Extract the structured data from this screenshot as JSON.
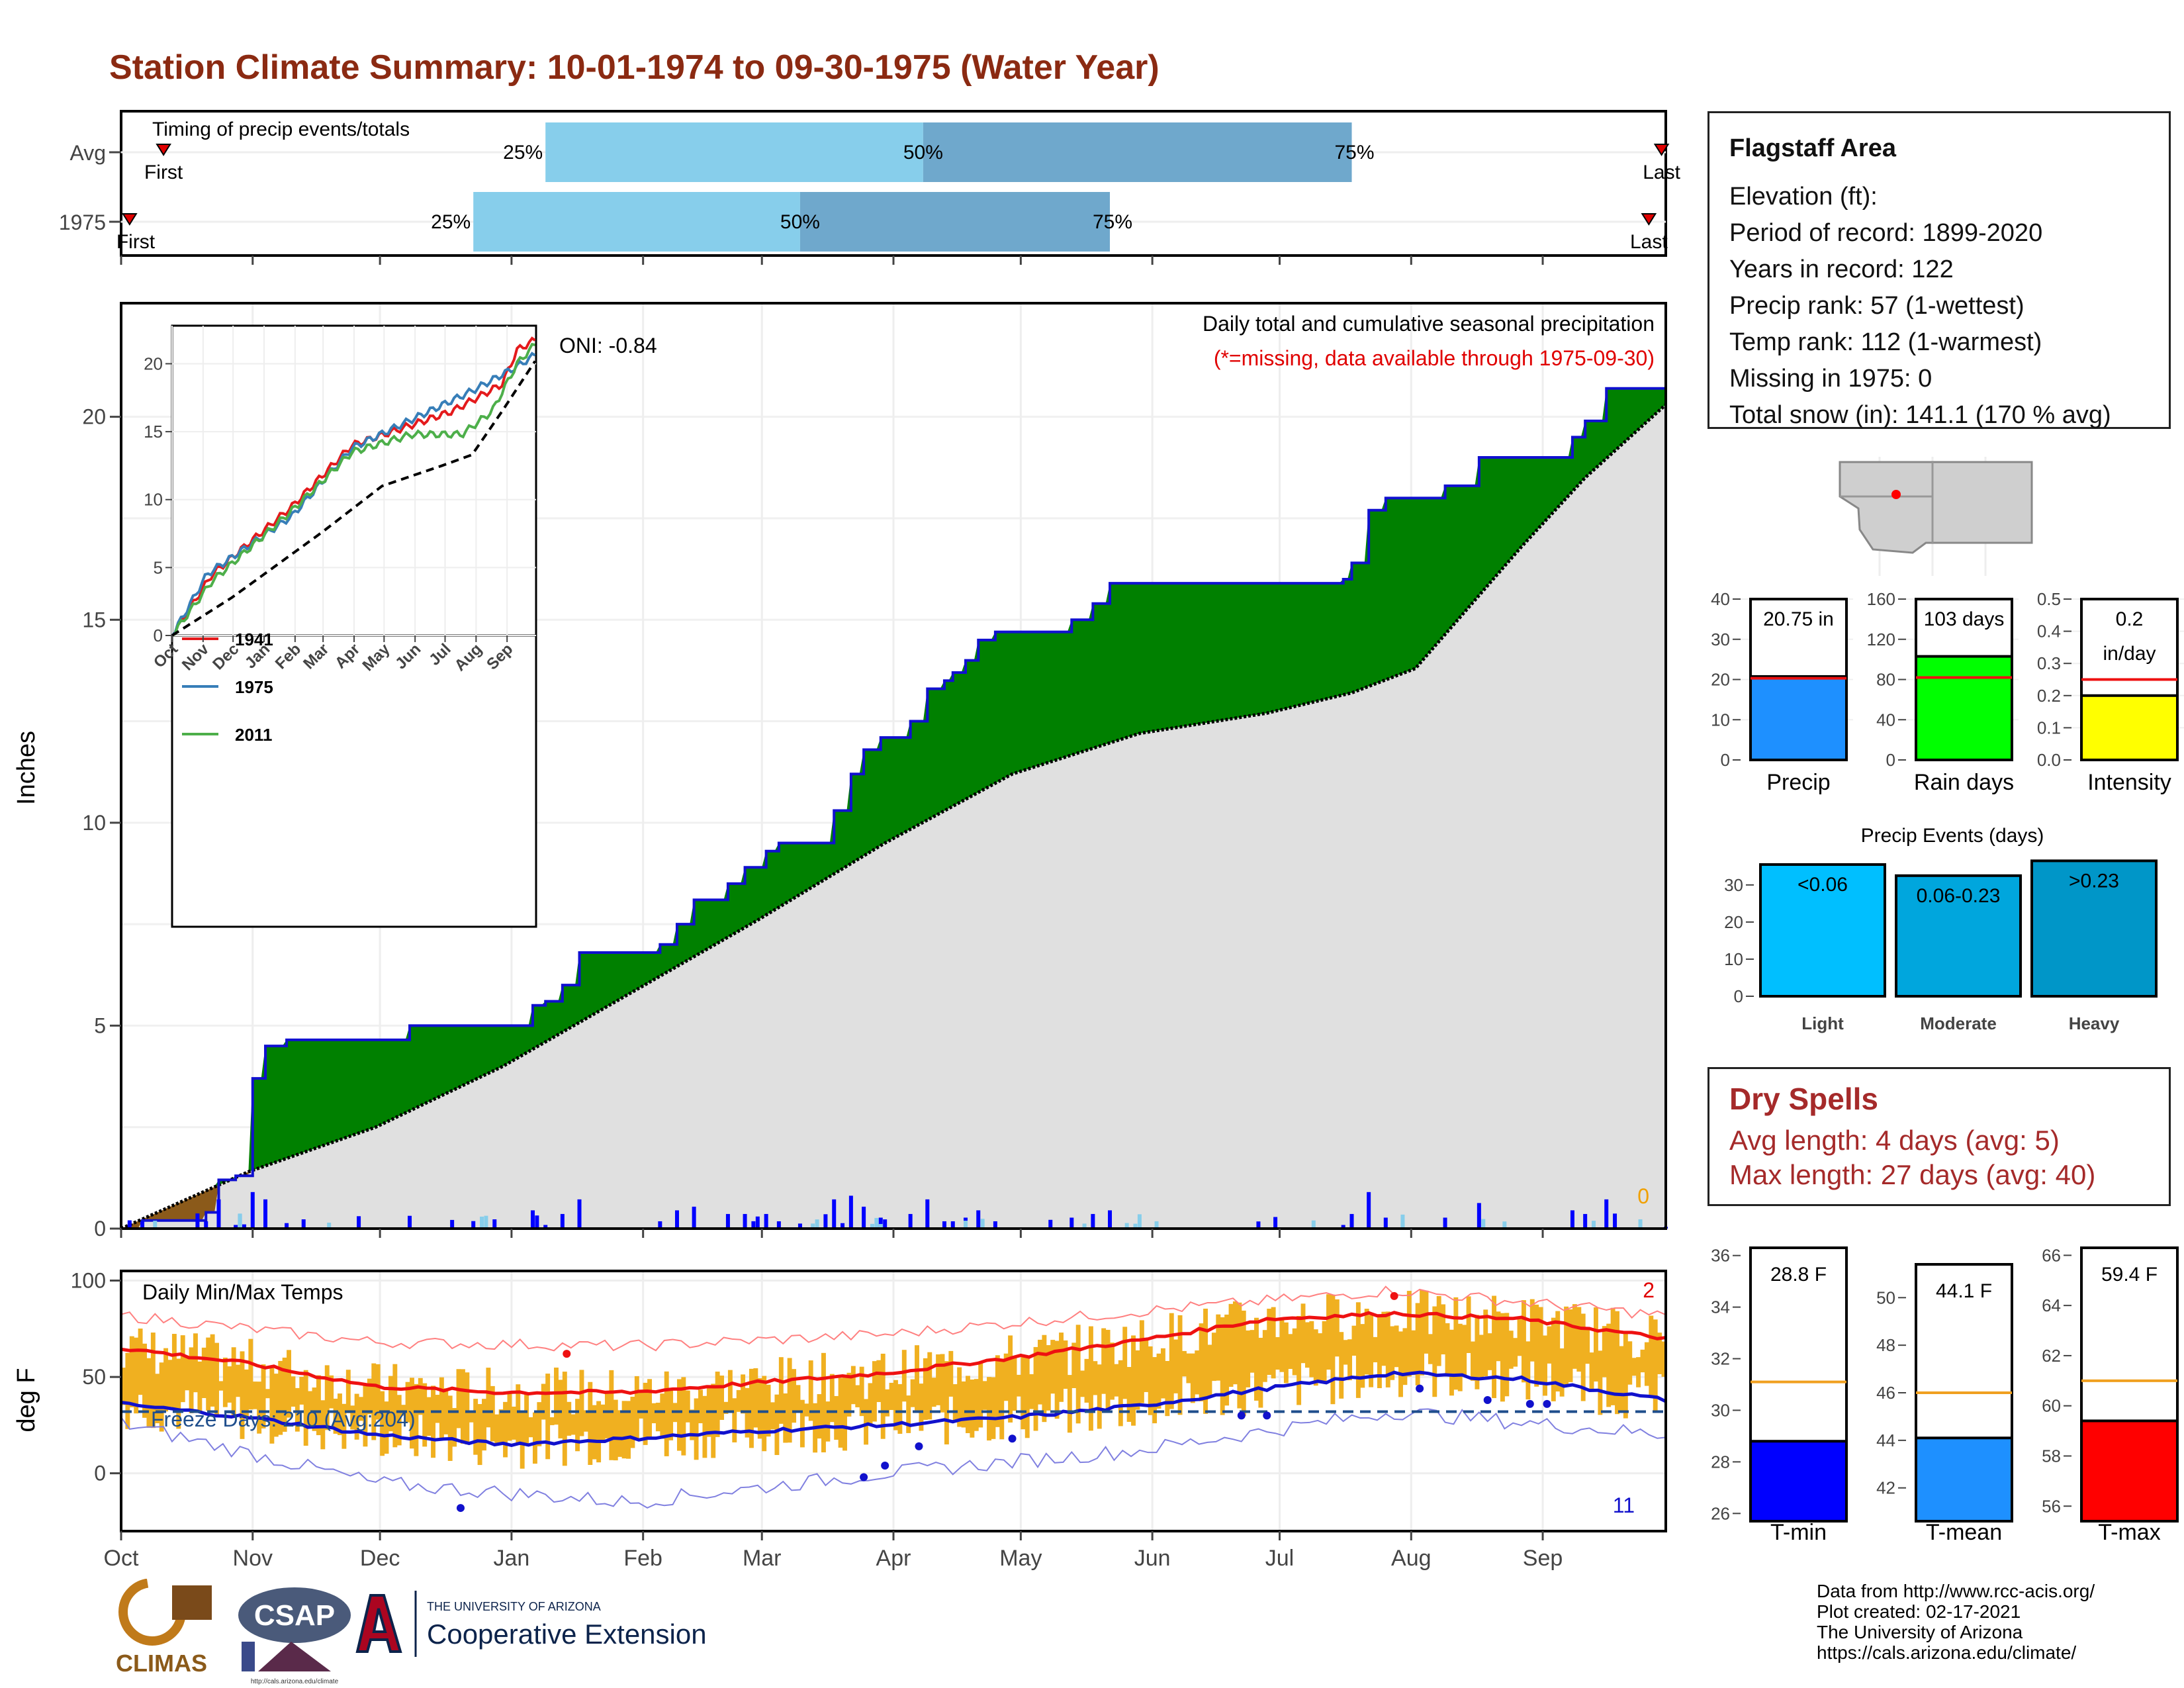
{
  "title": "Station Climate Summary: 10-01-1974 to 09-30-1975 (Water Year)",
  "timing_panel": {
    "title": "Timing of precip events/totals",
    "rows": [
      {
        "label": "Avg",
        "first_label": "First",
        "last_label": "Last",
        "first_day": 10,
        "last_day": 363,
        "p25_day": 100,
        "p50_day": 189,
        "p75_day": 290
      },
      {
        "label": "1975",
        "first_label": "First",
        "last_label": "Last",
        "first_day": 2,
        "last_day": 360,
        "p25_day": 83,
        "p50_day": 160,
        "p75_day": 233
      }
    ],
    "pct_labels": [
      "25%",
      "50%",
      "75%"
    ],
    "colors": {
      "inner": "#87ceeb",
      "outer": "#6fa8cc",
      "marker": "#e00000"
    }
  },
  "precip_panel": {
    "note": "Daily total and cumulative seasonal precipitation",
    "missing_note": "(*=missing, data available through 1975-09-30)",
    "oni": "ONI: -0.84",
    "ylabel": "Inches",
    "missing_count": "0",
    "colors": {
      "surplus": "#008000",
      "deficit": "#8b5a1a",
      "avg_area": "#e0e0e0",
      "line": "#1010d0"
    }
  },
  "inset": {
    "legend": [
      {
        "name": "1941",
        "color": "#e41a1c"
      },
      {
        "name": "1975",
        "color": "#377eb8"
      },
      {
        "name": "2011",
        "color": "#4daf4a"
      }
    ],
    "x_ticks": [
      "Oct",
      "Nov",
      "Dec",
      "Jan",
      "Feb",
      "Mar",
      "Apr",
      "May",
      "Jun",
      "Jul",
      "Aug",
      "Sep"
    ],
    "y_ticks": [
      "0",
      "5",
      "10",
      "15",
      "20"
    ]
  },
  "temp_panel": {
    "label": "Daily Min/Max Temps",
    "freeze": "Freeze Days: 210 (Avg:204)",
    "ylabel": "deg F",
    "count_high": "2",
    "count_low": "11",
    "y_ticks": [
      "0",
      "50",
      "100"
    ],
    "colors": {
      "bars": "#f0b020",
      "max": "#ee1111",
      "min": "#1111cc"
    }
  },
  "month_ticks": [
    "Oct",
    "Nov",
    "Dec",
    "Jan",
    "Feb",
    "Mar",
    "Apr",
    "May",
    "Jun",
    "Jul",
    "Aug",
    "Sep"
  ],
  "info": {
    "heading": "Flagstaff Area",
    "lines": [
      "Elevation (ft):",
      "Period of record: 1899-2020",
      "Years in record: 122",
      "Precip rank: 57 (1-wettest)",
      "Temp rank: 112 (1-warmest)",
      "Missing in 1975: 0",
      "Total snow (in): 141.1 (170 % avg)"
    ]
  },
  "gauges": [
    {
      "name": "Precip",
      "label_lines": [
        "20.75 in"
      ],
      "value": 20.75,
      "avg": 20.3,
      "max": 40,
      "ticks": [
        "0",
        "10",
        "20",
        "30",
        "40"
      ],
      "color": "#1e90ff"
    },
    {
      "name": "Rain days",
      "label_lines": [
        "103 days"
      ],
      "value": 103,
      "avg": 82,
      "max": 160,
      "ticks": [
        "0",
        "40",
        "80",
        "120",
        "160"
      ],
      "color": "#00ff00"
    },
    {
      "name": "Intensity",
      "label_lines": [
        "0.2",
        "in/day"
      ],
      "value": 0.2,
      "avg": 0.25,
      "max": 0.5,
      "ticks": [
        "0.0",
        "0.1",
        "0.2",
        "0.3",
        "0.4",
        "0.5"
      ],
      "color": "#ffff00"
    }
  ],
  "events": {
    "title": "Precip Events (days)",
    "y_ticks": [
      "0",
      "10",
      "20",
      "30"
    ],
    "max": 38,
    "bars": [
      {
        "name": "Light",
        "label": "<0.06",
        "value": 35.5,
        "color": "#00bfff"
      },
      {
        "name": "Moderate",
        "label": "0.06-0.23",
        "value": 32.5,
        "color": "#00a6dd"
      },
      {
        "name": "Heavy",
        "label": ">0.23",
        "value": 36.5,
        "color": "#0096c8"
      }
    ]
  },
  "dry_spells": {
    "title": "Dry Spells",
    "avg_length": "Avg length: 4 days (avg: 5)",
    "max_length": "Max length: 27 days (avg: 40)"
  },
  "temp_gauges": [
    {
      "name": "T-min",
      "label": "28.8 F",
      "value": 28.8,
      "avg": 31.1,
      "min": 25.7,
      "max": 36.3,
      "ticks": [
        "26",
        "28",
        "30",
        "32",
        "34",
        "36"
      ],
      "color": "#0000ff"
    },
    {
      "name": "T-mean",
      "label": "44.1 F",
      "value": 44.1,
      "avg": 46,
      "min": 40.6,
      "max": 51.4,
      "ticks": [
        "42",
        "44",
        "46",
        "48",
        "50"
      ],
      "color": "#1e90ff"
    },
    {
      "name": "T-max",
      "label": "59.4 F",
      "value": 59.4,
      "avg": 61,
      "min": 55.4,
      "max": 66.3,
      "ticks": [
        "56",
        "58",
        "60",
        "62",
        "64",
        "66"
      ],
      "color": "#ff0000"
    }
  ],
  "credits": [
    "Data from http://www.rcc-acis.org/",
    "Plot created: 02-17-2021",
    "The University of Arizona",
    "https://cals.arizona.edu/climate/"
  ],
  "logos": {
    "climas": "CLIMAS",
    "csap": "CSAP",
    "csap_url": "http://cals.arizona.edu/climate",
    "ua_top": "THE UNIVERSITY OF ARIZONA",
    "ua_bottom": "Cooperative Extension"
  },
  "chart_data": {
    "type": "area",
    "title": "Daily total and cumulative seasonal precipitation",
    "ylabel": "Inches",
    "ylim": [
      0,
      22.8
    ],
    "x_unit": "day of water year (0 = Oct 1)",
    "cumulative_1975": [
      [
        0,
        0
      ],
      [
        5,
        0.2
      ],
      [
        20,
        0.4
      ],
      [
        23,
        1.2
      ],
      [
        27,
        1.3
      ],
      [
        31,
        3.7
      ],
      [
        34,
        4.5
      ],
      [
        39,
        4.65
      ],
      [
        67,
        4.65
      ],
      [
        68,
        5.0
      ],
      [
        95,
        5.0
      ],
      [
        97,
        5.5
      ],
      [
        100,
        5.6
      ],
      [
        104,
        6.0
      ],
      [
        108,
        6.8
      ],
      [
        124,
        6.8
      ],
      [
        127,
        7.0
      ],
      [
        131,
        7.5
      ],
      [
        135,
        8.1
      ],
      [
        143,
        8.5
      ],
      [
        147,
        8.9
      ],
      [
        152,
        9.3
      ],
      [
        155,
        9.5
      ],
      [
        166,
        9.5
      ],
      [
        168,
        10.3
      ],
      [
        172,
        11.2
      ],
      [
        175,
        11.8
      ],
      [
        179,
        12.1
      ],
      [
        186,
        12.5
      ],
      [
        190,
        13.3
      ],
      [
        194,
        13.5
      ],
      [
        196,
        13.7
      ],
      [
        199,
        14.0
      ],
      [
        202,
        14.5
      ],
      [
        206,
        14.7
      ],
      [
        218,
        14.7
      ],
      [
        224,
        15.0
      ],
      [
        229,
        15.4
      ],
      [
        233,
        15.9
      ],
      [
        284,
        15.9
      ],
      [
        288,
        16.0
      ],
      [
        290,
        16.4
      ],
      [
        294,
        17.7
      ],
      [
        298,
        18.0
      ],
      [
        308,
        18.0
      ],
      [
        312,
        18.3
      ],
      [
        320,
        19.0
      ],
      [
        340,
        19.0
      ],
      [
        342,
        19.5
      ],
      [
        345,
        19.9
      ],
      [
        350,
        20.7
      ],
      [
        364,
        20.75
      ]
    ],
    "cumulative_avg": [
      [
        0,
        0
      ],
      [
        30,
        1.4
      ],
      [
        60,
        2.5
      ],
      [
        90,
        4.0
      ],
      [
        120,
        5.8
      ],
      [
        150,
        7.6
      ],
      [
        180,
        9.5
      ],
      [
        210,
        11.2
      ],
      [
        240,
        12.2
      ],
      [
        270,
        12.7
      ],
      [
        290,
        13.2
      ],
      [
        305,
        13.8
      ],
      [
        315,
        15.0
      ],
      [
        330,
        16.8
      ],
      [
        345,
        18.5
      ],
      [
        364,
        20.3
      ]
    ],
    "inset_series": [
      {
        "name": "1941",
        "points": [
          [
            0,
            0
          ],
          [
            40,
            4.5
          ],
          [
            120,
            9.5
          ],
          [
            180,
            14.0
          ],
          [
            240,
            15.5
          ],
          [
            280,
            16.5
          ],
          [
            330,
            18.5
          ],
          [
            345,
            21.0
          ],
          [
            364,
            21.8
          ]
        ]
      },
      {
        "name": "1975",
        "points": [
          [
            0,
            0
          ],
          [
            35,
            4.5
          ],
          [
            120,
            8.8
          ],
          [
            180,
            13.8
          ],
          [
            240,
            15.9
          ],
          [
            300,
            18.0
          ],
          [
            345,
            19.8
          ],
          [
            364,
            20.7
          ]
        ]
      },
      {
        "name": "2011",
        "points": [
          [
            0,
            0
          ],
          [
            40,
            4.0
          ],
          [
            120,
            9.2
          ],
          [
            180,
            13.5
          ],
          [
            240,
            14.8
          ],
          [
            290,
            14.8
          ],
          [
            320,
            16.5
          ],
          [
            345,
            20.0
          ],
          [
            364,
            21.5
          ]
        ]
      },
      {
        "name": "",
        "points": [
          [
            0,
            0
          ],
          [
            60,
            2.8
          ],
          [
            150,
            7.6
          ],
          [
            210,
            11.0
          ],
          [
            270,
            12.5
          ],
          [
            300,
            13.3
          ],
          [
            330,
            16.5
          ],
          [
            364,
            20.3
          ]
        ]
      }
    ],
    "temp_avg_max": [
      [
        0,
        65
      ],
      [
        30,
        57
      ],
      [
        60,
        45
      ],
      [
        90,
        42
      ],
      [
        120,
        42
      ],
      [
        150,
        47
      ],
      [
        180,
        52
      ],
      [
        210,
        60
      ],
      [
        240,
        69
      ],
      [
        270,
        80
      ],
      [
        300,
        83
      ],
      [
        330,
        80
      ],
      [
        364,
        70
      ]
    ],
    "temp_avg_min": [
      [
        0,
        36
      ],
      [
        30,
        29
      ],
      [
        60,
        20
      ],
      [
        90,
        15
      ],
      [
        120,
        18
      ],
      [
        150,
        22
      ],
      [
        180,
        25
      ],
      [
        210,
        29
      ],
      [
        240,
        35
      ],
      [
        270,
        44
      ],
      [
        300,
        52
      ],
      [
        330,
        49
      ],
      [
        364,
        38
      ]
    ],
    "temp_record_max": [
      [
        0,
        82
      ],
      [
        60,
        68
      ],
      [
        120,
        66
      ],
      [
        180,
        72
      ],
      [
        240,
        84
      ],
      [
        300,
        95
      ],
      [
        364,
        82
      ]
    ],
    "temp_record_min": [
      [
        0,
        26
      ],
      [
        60,
        -5
      ],
      [
        120,
        -15
      ],
      [
        180,
        0
      ],
      [
        240,
        12
      ],
      [
        300,
        32
      ],
      [
        364,
        20
      ]
    ],
    "freeze_threshold": 32,
    "temp_ylim": [
      -30,
      105
    ]
  }
}
